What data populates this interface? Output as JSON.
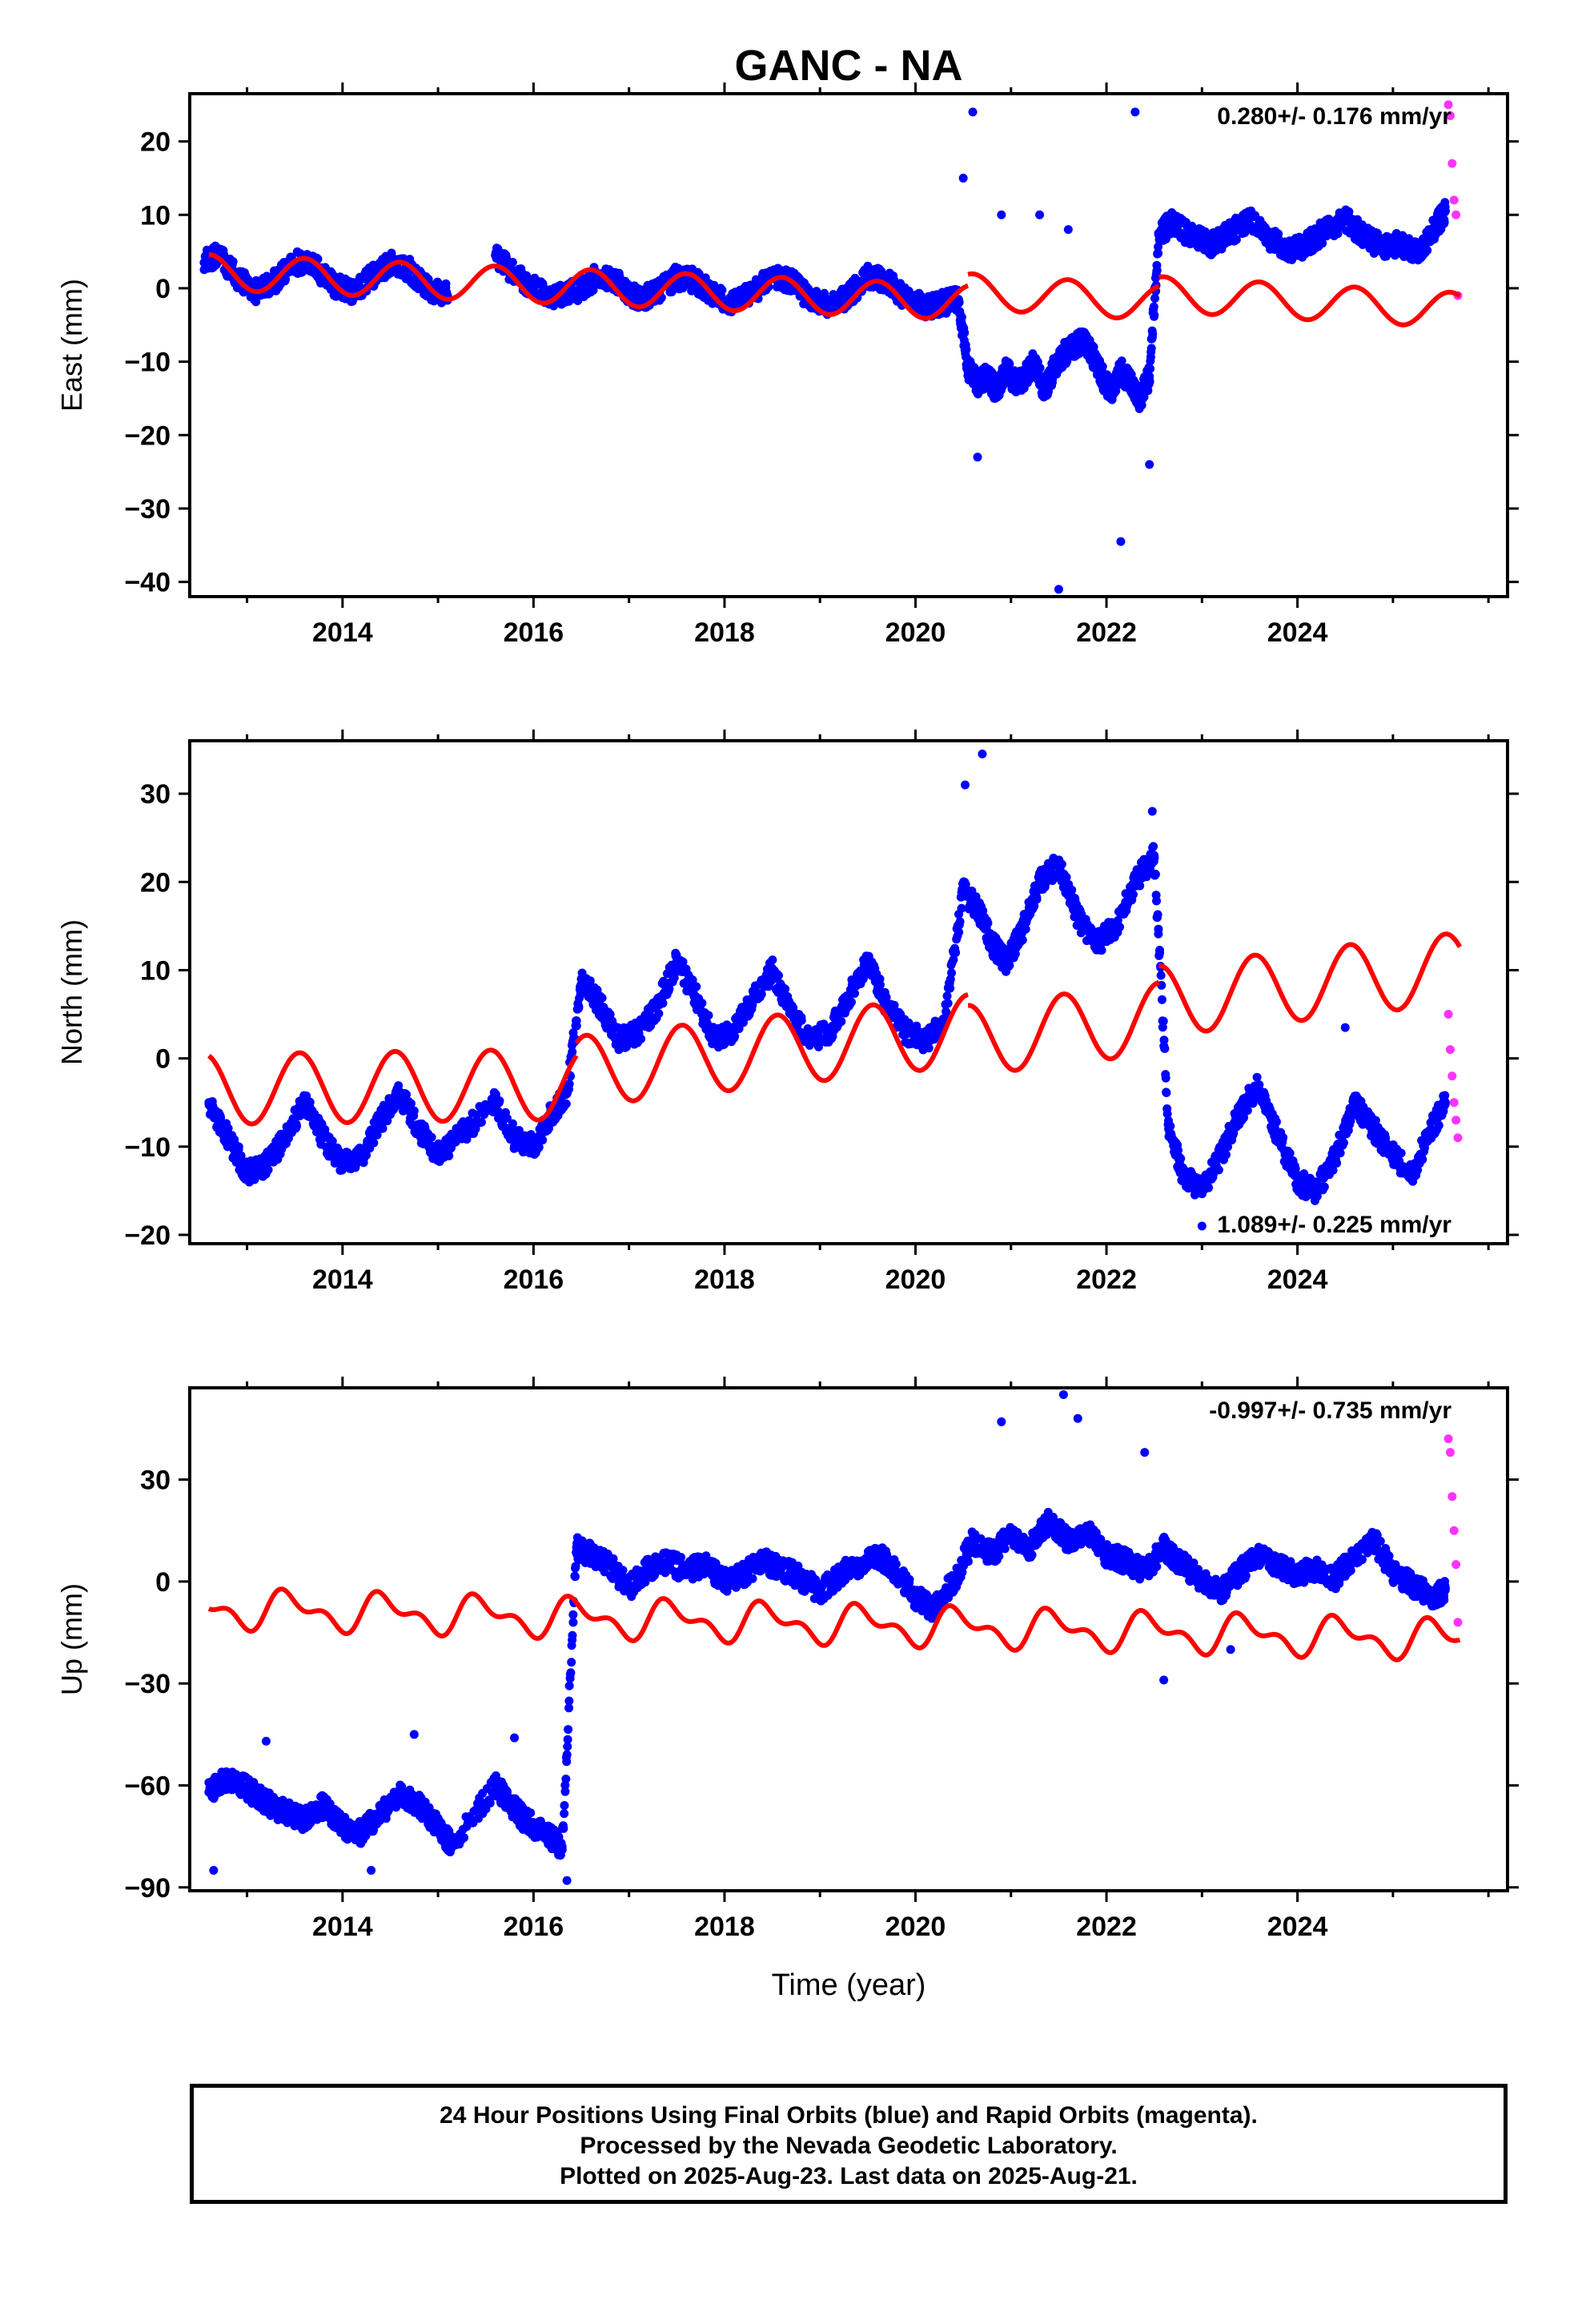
{
  "title": "GANC - NA",
  "footer": {
    "line1": "24 Hour Positions Using Final Orbits (blue) and Rapid Orbits (magenta).",
    "line2": "Processed by the Nevada Geodetic Laboratory.",
    "line3": "Plotted on 2025-Aug-23. Last data on 2025-Aug-21."
  },
  "colors": {
    "final": "#0000ff",
    "rapid": "#ff33ff",
    "model": "#ff0000",
    "axes": "#000000"
  },
  "chart_data": [
    {
      "type": "scatter",
      "component": "East",
      "ylabel": "East (mm)",
      "xlabel": "",
      "rate_label": "0.280+/- 0.176 mm/yr",
      "xlim": [
        2012.4,
        2026.2
      ],
      "ylim": [
        -42,
        26.5
      ],
      "xticks": [
        2014,
        2016,
        2018,
        2020,
        2022,
        2024
      ],
      "yticks": [
        -40,
        -30,
        -20,
        -10,
        0,
        10,
        20
      ],
      "series": [
        {
          "role": "final_orbits",
          "x": [
            2012.55,
            2012.7,
            2012.9,
            2013.1,
            2013.3,
            2013.5,
            2013.7,
            2013.9,
            2014.1,
            2014.3,
            2014.5,
            2014.7,
            2014.9,
            2015.1,
            2015.6,
            2015.8,
            2016.0,
            2016.2,
            2016.5,
            2016.7,
            2016.9,
            2017.1,
            2017.3,
            2017.5,
            2017.7,
            2017.9,
            2018.1,
            2018.3,
            2018.5,
            2018.7,
            2018.9,
            2019.1,
            2019.3,
            2019.5,
            2019.7,
            2019.9,
            2020.1,
            2020.3,
            2020.45,
            2020.55,
            2020.65,
            2020.75,
            2020.85,
            2020.95,
            2021.05,
            2021.15,
            2021.25,
            2021.35,
            2021.45,
            2021.55,
            2021.65,
            2021.75,
            2021.85,
            2021.95,
            2022.05,
            2022.15,
            2022.25,
            2022.35,
            2022.45,
            2022.55,
            2022.7,
            2022.9,
            2023.1,
            2023.3,
            2023.5,
            2023.7,
            2023.9,
            2024.1,
            2024.3,
            2024.5,
            2024.7,
            2024.9,
            2025.05,
            2025.3,
            2025.45,
            2025.55
          ],
          "y": [
            3.5,
            4.5,
            1.5,
            -0.5,
            1.0,
            3.5,
            3.0,
            0.5,
            -0.5,
            1.5,
            3.5,
            2.5,
            0.0,
            -1.0,
            4.5,
            2.0,
            0.0,
            -1.5,
            0.0,
            2.0,
            0.5,
            -1.5,
            -0.5,
            1.5,
            1.0,
            -1.0,
            -2.0,
            -0.5,
            1.5,
            1.0,
            -1.5,
            -2.5,
            -1.0,
            1.5,
            1.0,
            -1.5,
            -2.5,
            -2.0,
            -1.5,
            -11.0,
            -13.0,
            -12.0,
            -14.0,
            -11.0,
            -13.0,
            -12.0,
            -10.0,
            -14.0,
            -11.0,
            -9.0,
            -8.0,
            -7.0,
            -9.0,
            -12.0,
            -14.0,
            -11.0,
            -13.0,
            -15.0,
            -12.0,
            7.5,
            9.0,
            7.0,
            6.0,
            7.5,
            9.5,
            7.0,
            5.0,
            6.0,
            8.0,
            9.5,
            7.0,
            5.5,
            6.0,
            5.0,
            8.5,
            10.5
          ]
        },
        {
          "role": "outliers",
          "x": [
            2020.5,
            2020.6,
            2020.65,
            2020.9,
            2021.3,
            2021.5,
            2021.6,
            2022.15,
            2022.3,
            2022.45
          ],
          "y": [
            15,
            24,
            -23,
            10,
            10,
            -41,
            8,
            -34.5,
            24,
            -24
          ]
        },
        {
          "role": "rapid_orbits",
          "x": [
            2025.58,
            2025.6,
            2025.62,
            2025.64,
            2025.66,
            2025.68
          ],
          "y": [
            25,
            23.5,
            17,
            12,
            10,
            -1
          ]
        },
        {
          "role": "seasonal_trend_model",
          "amplitude": 2.4,
          "phase": 2012.35,
          "segments": [
            {
              "t0": 2012.6,
              "t1": 2020.55,
              "offset": 2.2,
              "rate": -0.52
            },
            {
              "t0": 2020.55,
              "t1": 2022.55,
              "offset": -0.4,
              "rate": -0.8
            },
            {
              "t0": 2022.55,
              "t1": 2025.7,
              "offset": -0.8,
              "rate": -0.7
            }
          ]
        }
      ]
    },
    {
      "type": "scatter",
      "component": "North",
      "ylabel": "North (mm)",
      "xlabel": "",
      "rate_label": "1.089+/- 0.225 mm/yr",
      "xlim": [
        2012.4,
        2026.2
      ],
      "ylim": [
        -21,
        36
      ],
      "xticks": [
        2014,
        2016,
        2018,
        2020,
        2022,
        2024
      ],
      "yticks": [
        -20,
        -10,
        0,
        10,
        20,
        30
      ],
      "series": [
        {
          "role": "final_orbits",
          "x": [
            2012.6,
            2012.8,
            2013.0,
            2013.2,
            2013.4,
            2013.6,
            2013.8,
            2014.0,
            2014.2,
            2014.4,
            2014.6,
            2014.8,
            2015.0,
            2015.2,
            2015.6,
            2015.8,
            2016.0,
            2016.2,
            2016.35,
            2016.5,
            2016.7,
            2016.9,
            2017.1,
            2017.3,
            2017.5,
            2017.7,
            2017.9,
            2018.1,
            2018.3,
            2018.5,
            2018.7,
            2018.9,
            2019.1,
            2019.3,
            2019.5,
            2019.7,
            2019.9,
            2020.1,
            2020.3,
            2020.5,
            2020.65,
            2020.8,
            2020.95,
            2021.1,
            2021.3,
            2021.5,
            2021.7,
            2021.9,
            2022.1,
            2022.3,
            2022.5,
            2022.65,
            2022.8,
            2023.0,
            2023.2,
            2023.4,
            2023.6,
            2023.8,
            2024.0,
            2024.2,
            2024.4,
            2024.6,
            2024.8,
            2025.0,
            2025.2,
            2025.4,
            2025.55
          ],
          "y": [
            -5,
            -9,
            -13,
            -12,
            -9,
            -5,
            -9,
            -12,
            -11,
            -7,
            -4,
            -8,
            -11,
            -9,
            -5,
            -9,
            -10,
            -6,
            -4,
            9,
            6,
            2,
            3,
            6,
            11,
            7,
            2,
            3,
            7,
            10,
            5,
            2,
            3,
            7,
            11,
            6,
            3,
            2,
            4,
            19,
            17,
            13,
            11,
            14,
            20,
            22,
            16,
            13,
            15,
            20,
            23,
            -8,
            -13,
            -15,
            -11,
            -6,
            -3,
            -9,
            -14,
            -15,
            -11,
            -5,
            -8,
            -11,
            -13,
            -8,
            -5
          ]
        },
        {
          "role": "outliers",
          "x": [
            2020.52,
            2020.7,
            2022.48,
            2023.0,
            2024.5
          ],
          "y": [
            31,
            34.5,
            28,
            -19,
            3.5
          ]
        },
        {
          "role": "rapid_orbits",
          "x": [
            2025.58,
            2025.6,
            2025.62,
            2025.64,
            2025.66,
            2025.68
          ],
          "y": [
            5,
            1,
            -2,
            -5,
            -7,
            -9
          ]
        },
        {
          "role": "seasonal_trend_model",
          "amplitude": 4.0,
          "phase": 2012.3,
          "segments": [
            {
              "t0": 2012.6,
              "t1": 2016.45,
              "offset": -3.5,
              "rate": 0.15
            },
            {
              "t0": 2016.45,
              "t1": 2020.55,
              "offset": -1.5,
              "rate": 1.15
            },
            {
              "t0": 2020.55,
              "t1": 2022.55,
              "offset": 2.0,
              "rate": 1.3
            },
            {
              "t0": 2022.55,
              "t1": 2025.7,
              "offset": 6.5,
              "rate": 1.2
            }
          ]
        }
      ]
    },
    {
      "type": "scatter",
      "component": "Up",
      "ylabel": "Up (mm)",
      "xlabel": "Time (year)",
      "rate_label": "-0.997+/- 0.735 mm/yr",
      "xlim": [
        2012.4,
        2026.2
      ],
      "ylim": [
        -91,
        57
      ],
      "xticks": [
        2014,
        2016,
        2018,
        2020,
        2022,
        2024
      ],
      "yticks": [
        -90,
        -60,
        -30,
        0,
        30
      ],
      "series": [
        {
          "role": "final_orbits",
          "x": [
            2012.6,
            2012.8,
            2013.0,
            2013.2,
            2013.4,
            2013.6,
            2013.8,
            2014.0,
            2014.2,
            2014.4,
            2014.6,
            2014.8,
            2015.0,
            2015.15,
            2015.6,
            2015.75,
            2015.9,
            2016.15,
            2016.3,
            2016.45,
            2016.6,
            2016.8,
            2017.0,
            2017.2,
            2017.4,
            2017.6,
            2017.8,
            2018.0,
            2018.2,
            2018.4,
            2018.6,
            2018.8,
            2019.0,
            2019.2,
            2019.4,
            2019.6,
            2019.8,
            2020.0,
            2020.2,
            2020.4,
            2020.6,
            2020.8,
            2021.0,
            2021.2,
            2021.4,
            2021.6,
            2021.8,
            2022.0,
            2022.2,
            2022.4,
            2022.6,
            2022.8,
            2023.0,
            2023.2,
            2023.4,
            2023.6,
            2023.8,
            2024.0,
            2024.2,
            2024.4,
            2024.6,
            2024.8,
            2025.0,
            2025.2,
            2025.45,
            2025.55
          ],
          "y": [
            -62,
            -58,
            -61,
            -65,
            -68,
            -70,
            -66,
            -72,
            -74,
            -68,
            -63,
            -66,
            -72,
            -78,
            -60,
            -65,
            -70,
            -75,
            -78,
            10,
            8,
            5,
            -2,
            4,
            6,
            3,
            5,
            0,
            2,
            6,
            4,
            1,
            -3,
            2,
            5,
            8,
            3,
            -5,
            -8,
            0,
            12,
            8,
            14,
            10,
            18,
            12,
            15,
            8,
            6,
            3,
            10,
            5,
            0,
            -3,
            3,
            8,
            5,
            2,
            4,
            1,
            8,
            12,
            3,
            -1,
            -5,
            -2
          ]
        },
        {
          "role": "outliers",
          "x": [
            2012.65,
            2013.2,
            2014.3,
            2014.75,
            2015.8,
            2016.35,
            2020.9,
            2021.55,
            2021.7,
            2022.4,
            2022.6,
            2023.3
          ],
          "y": [
            -85,
            -47,
            -85,
            -45,
            -46,
            -88,
            47,
            55,
            48,
            38,
            -29,
            -20
          ]
        },
        {
          "role": "rapid_orbits",
          "x": [
            2025.58,
            2025.6,
            2025.62,
            2025.64,
            2025.66,
            2025.68
          ],
          "y": [
            42,
            38,
            25,
            15,
            5,
            -12
          ]
        },
        {
          "role": "seasonal_trend_model",
          "amplitude": 4.5,
          "phase": 2012.2,
          "semiannual": 2.8,
          "segments": [
            {
              "t0": 2012.6,
              "t1": 2025.7,
              "offset": -8.0,
              "rate": -0.7
            }
          ]
        }
      ]
    }
  ]
}
